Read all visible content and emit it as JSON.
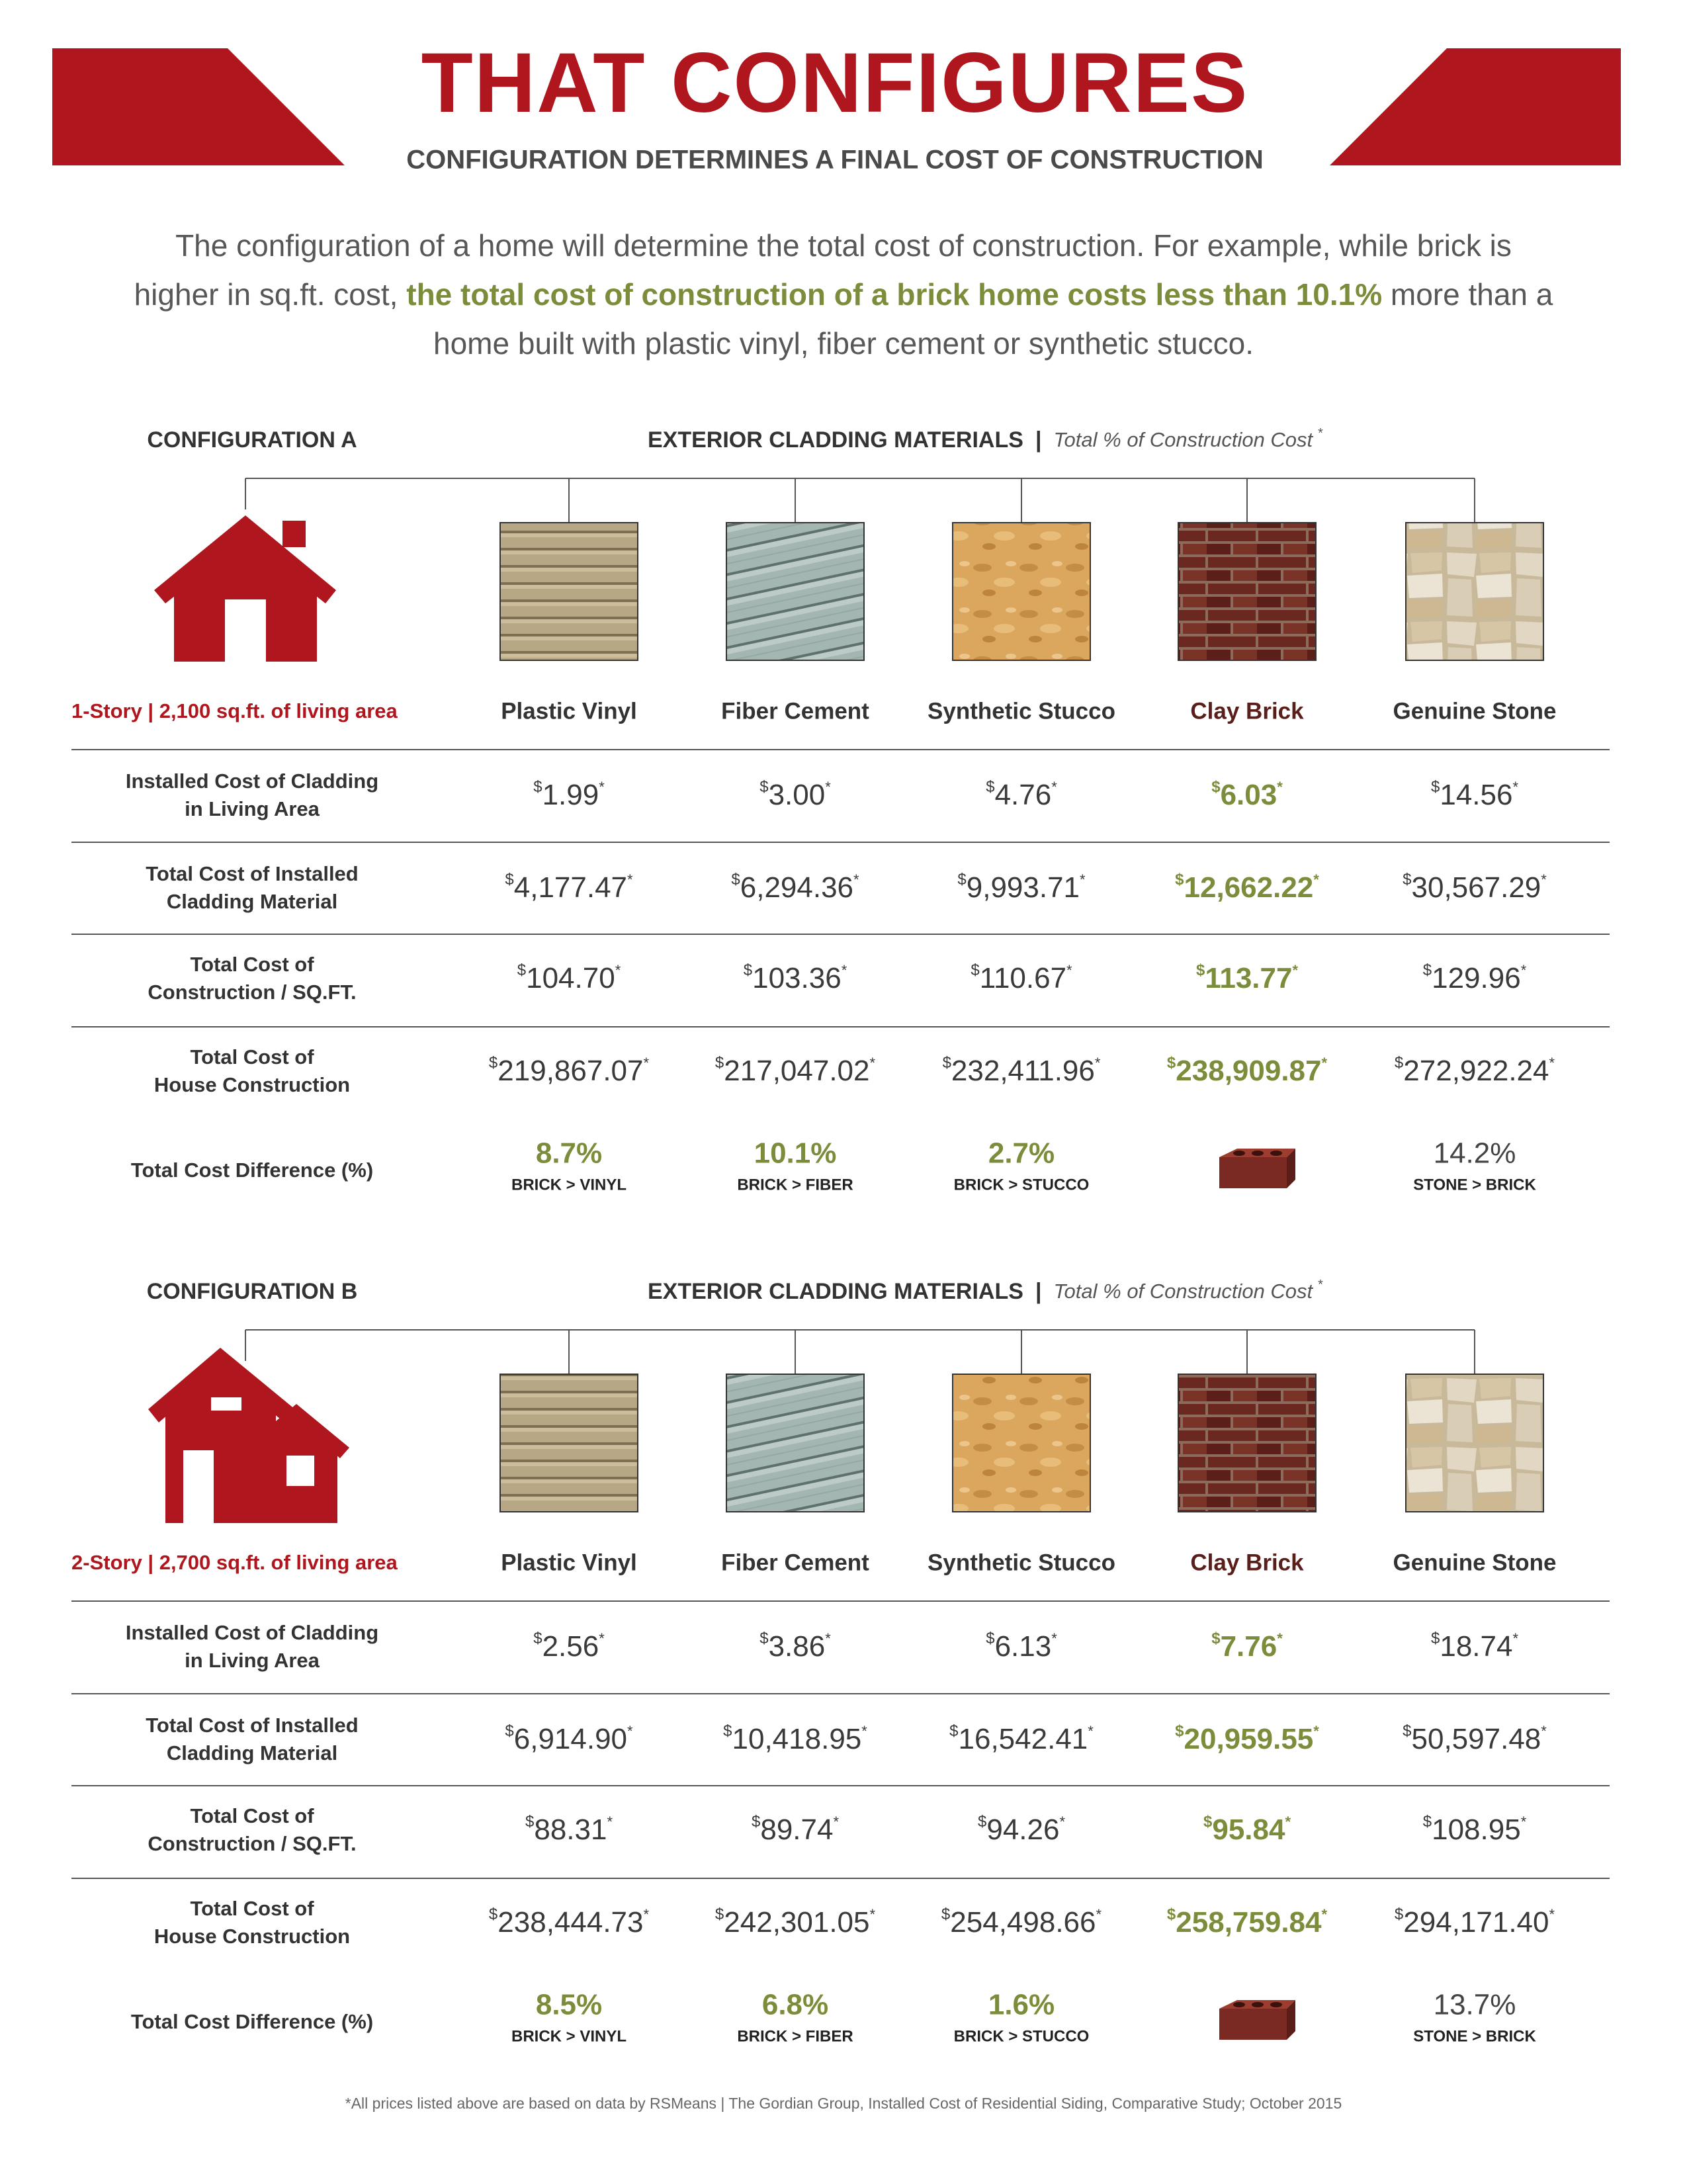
{
  "header": {
    "title": "THAT CONFIGURES",
    "subtitle": "CONFIGURATION DETERMINES A FINAL COST OF CONSTRUCTION"
  },
  "intro": {
    "before": "The configuration of a home will determine the total cost of construction.  For example, while brick is higher in sq.ft. cost, ",
    "highlight": "the total cost of construction of a brick home costs less than 10.1%",
    "after": " more than a home built with plastic vinyl, fiber cement or synthetic stucco."
  },
  "currency_symbol": "$",
  "footnote_mark": "*",
  "configurations": [
    {
      "name": "CONFIGURATION A",
      "heading": "EXTERIOR CLADDING MATERIALS",
      "separator": "|",
      "heading_note": "Total % of Construction Cost",
      "description": "1-Story | 2,100 sq.ft. of living area",
      "materials": [
        "Plastic Vinyl",
        "Fiber Cement",
        "Synthetic Stucco",
        "Clay Brick",
        "Genuine Stone"
      ],
      "rows": [
        {
          "label": [
            "Installed Cost of Cladding",
            "in Living Area"
          ],
          "values": [
            "1.99",
            "3.00",
            "4.76",
            "6.03",
            "14.56"
          ]
        },
        {
          "label": [
            "Total Cost of Installed",
            "Cladding Material"
          ],
          "values": [
            "4,177.47",
            "6,294.36",
            "9,993.71",
            "12,662.22",
            "30,567.29"
          ]
        },
        {
          "label": [
            "Total Cost of",
            "Construction / SQ.FT."
          ],
          "values": [
            "104.70",
            "103.36",
            "110.67",
            "113.77",
            "129.96"
          ]
        },
        {
          "label": [
            "Total Cost of",
            "House Construction"
          ],
          "values": [
            "219,867.07",
            "217,047.02",
            "232,411.96",
            "238,909.87",
            "272,922.24"
          ]
        }
      ],
      "difference": {
        "label": "Total Cost Difference (%)",
        "values": [
          "8.7%",
          "10.1%",
          "2.7%",
          null,
          "14.2%"
        ],
        "notes": [
          "BRICK > VINYL",
          "BRICK > FIBER",
          "BRICK > STUCCO",
          null,
          "STONE > BRICK"
        ]
      }
    },
    {
      "name": "CONFIGURATION B",
      "heading": "EXTERIOR CLADDING MATERIALS",
      "separator": "|",
      "heading_note": "Total % of Construction Cost",
      "description": "2-Story | 2,700 sq.ft. of living area",
      "materials": [
        "Plastic Vinyl",
        "Fiber Cement",
        "Synthetic Stucco",
        "Clay Brick",
        "Genuine Stone"
      ],
      "rows": [
        {
          "label": [
            "Installed Cost of Cladding",
            "in Living Area"
          ],
          "values": [
            "2.56",
            "3.86",
            "6.13",
            "7.76",
            "18.74"
          ]
        },
        {
          "label": [
            "Total Cost of Installed",
            "Cladding Material"
          ],
          "values": [
            "6,914.90",
            "10,418.95",
            "16,542.41",
            "20,959.55",
            "50,597.48"
          ]
        },
        {
          "label": [
            "Total Cost of",
            "Construction / SQ.FT."
          ],
          "values": [
            "88.31",
            "89.74",
            "94.26",
            "95.84",
            "108.95"
          ]
        },
        {
          "label": [
            "Total Cost of",
            "House Construction"
          ],
          "values": [
            "238,444.73",
            "242,301.05",
            "254,498.66",
            "258,759.84",
            "294,171.40"
          ]
        }
      ],
      "difference": {
        "label": "Total Cost Difference (%)",
        "values": [
          "8.5%",
          "6.8%",
          "1.6%",
          null,
          "13.7%"
        ],
        "notes": [
          "BRICK > VINYL",
          "BRICK > FIBER",
          "BRICK > STUCCO",
          null,
          "STONE > BRICK"
        ]
      }
    }
  ],
  "footnote": "*All prices listed above are based on data by RSMeans | The Gordian Group, Installed Cost of Residential Siding, Comparative Study; October 2015"
}
